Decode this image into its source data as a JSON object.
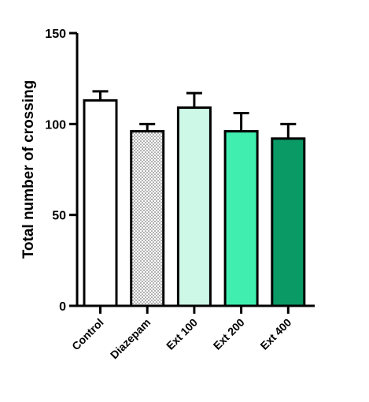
{
  "chart_data": {
    "type": "bar",
    "y_label": "Total number of crossing",
    "categories": [
      "Control",
      "Diazepam",
      "Ext 100",
      "Ext 200",
      "Ext 400"
    ],
    "values": [
      113,
      96,
      109,
      96,
      92
    ],
    "errors": [
      5,
      4,
      8,
      10,
      8
    ],
    "colors": [
      "#ffffff",
      "#ffffff",
      "#cdf7e6",
      "#40efb0",
      "#0a9a66"
    ],
    "patterns": [
      null,
      "dots",
      null,
      null,
      null
    ],
    "ylim": [
      0,
      150
    ],
    "yticks": [
      0,
      50,
      100,
      150
    ],
    "grid": false
  }
}
